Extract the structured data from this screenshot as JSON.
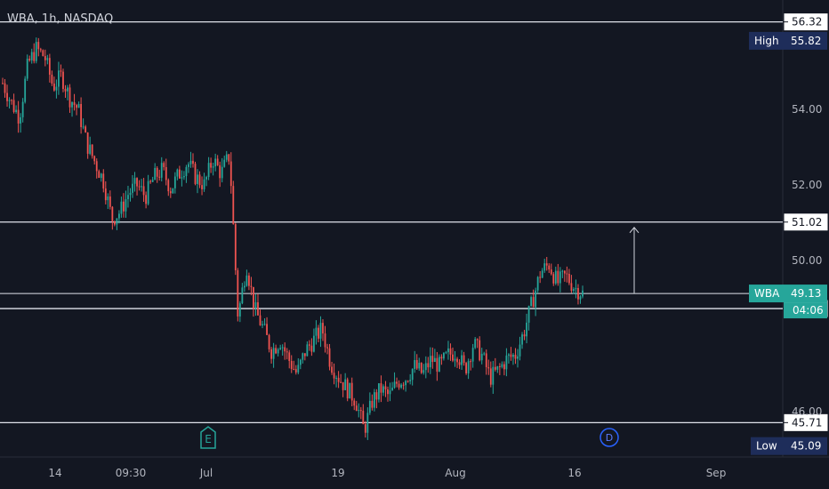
{
  "header": {
    "title": "WBA, 1h, NASDAQ"
  },
  "colors": {
    "background": "#131722",
    "up": "#26a69a",
    "down": "#ef5350",
    "level_line": "#e0e3eb",
    "axis_text": "#b2b5be",
    "high_low_tag": "#1e2d5a",
    "current_tag": "#26a69a",
    "earnings_marker": "#26a69a",
    "dividend_marker": "#2962ff"
  },
  "chart_data": {
    "type": "candlestick",
    "title": "WBA, 1h, NASDAQ",
    "ylim": [
      44.8,
      56.9
    ],
    "y_ticks": [
      "54.00",
      "52.00",
      "50.00",
      "46.00"
    ],
    "y_tick_values": [
      54.0,
      52.0,
      50.0,
      46.0
    ],
    "x_ticks": [
      "14",
      "09:30",
      "Jul",
      "19",
      "Aug",
      "16",
      "Sep"
    ],
    "horizontal_levels": [
      {
        "value": 56.32,
        "label": "56.32"
      },
      {
        "value": 51.02,
        "label": "51.02"
      },
      {
        "value": 48.73,
        "label": "48.73"
      },
      {
        "value": 45.71,
        "label": "45.71"
      }
    ],
    "price_tags": {
      "high": {
        "label": "High",
        "value": "55.82"
      },
      "low": {
        "label": "Low",
        "value": "45.09"
      },
      "current": {
        "symbol": "WBA",
        "value": "49.13",
        "countdown": "04:06"
      }
    },
    "event_markers": [
      {
        "letter": "E",
        "name": "earnings"
      },
      {
        "letter": "D",
        "name": "dividend"
      }
    ],
    "close_path": [
      54.7,
      54.2,
      53.8,
      55.2,
      55.6,
      55.4,
      54.6,
      54.9,
      54.3,
      54.0,
      53.1,
      52.6,
      52.1,
      51.1,
      51.3,
      51.8,
      52.0,
      51.7,
      52.2,
      52.4,
      51.9,
      52.3,
      52.6,
      52.2,
      52.0,
      52.7,
      52.3,
      52.8,
      48.5,
      49.9,
      48.7,
      48.2,
      47.6,
      47.9,
      47.4,
      47.0,
      47.6,
      47.9,
      48.2,
      47.3,
      46.9,
      46.6,
      46.3,
      45.5,
      46.3,
      46.6,
      46.4,
      46.8,
      46.9,
      47.2,
      47.0,
      47.4,
      47.2,
      47.5,
      47.6,
      47.1,
      47.8,
      47.5,
      46.9,
      47.1,
      47.4,
      47.5,
      48.1,
      48.9,
      49.7,
      49.9,
      49.4,
      49.6,
      49.3,
      49.13
    ],
    "arrow_annotation": {
      "from": 49.13,
      "to": 51.02
    }
  }
}
